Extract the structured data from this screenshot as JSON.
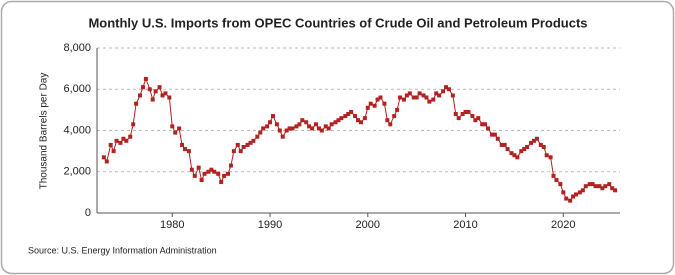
{
  "chart_data": {
    "type": "line",
    "title": "Monthly U.S. Imports from OPEC Countries of Crude Oil and Petroleum Products",
    "y_label": "Thousand Barrels per Day",
    "source": "Source: U.S. Energy Information Administration",
    "color": "#b22222",
    "grid": true,
    "xlim": [
      1972.3,
      2025.8
    ],
    "xticks": [
      1980,
      1990,
      2000,
      2010,
      2020
    ],
    "ylim": [
      0,
      8000
    ],
    "yticks": [
      0,
      {
        "value": 2000,
        "label": "2,000"
      },
      {
        "value": 4000,
        "label": "4,000"
      },
      {
        "value": 6000,
        "label": "6,000"
      },
      {
        "value": 8000,
        "label": "8,000"
      }
    ],
    "x": [
      1973.0,
      1973.3,
      1973.7,
      1974.0,
      1974.3,
      1974.7,
      1975.0,
      1975.3,
      1975.7,
      1976.0,
      1976.3,
      1976.7,
      1977.0,
      1977.3,
      1977.7,
      1978.0,
      1978.3,
      1978.7,
      1979.0,
      1979.3,
      1979.7,
      1980.0,
      1980.3,
      1980.7,
      1981.0,
      1981.3,
      1981.7,
      1982.0,
      1982.3,
      1982.7,
      1983.0,
      1983.3,
      1983.7,
      1984.0,
      1984.3,
      1984.7,
      1985.0,
      1985.3,
      1985.7,
      1986.0,
      1986.3,
      1986.7,
      1987.0,
      1987.3,
      1987.7,
      1988.0,
      1988.3,
      1988.7,
      1989.0,
      1989.3,
      1989.7,
      1990.0,
      1990.3,
      1990.7,
      1991.0,
      1991.3,
      1991.7,
      1992.0,
      1992.3,
      1992.7,
      1993.0,
      1993.3,
      1993.7,
      1994.0,
      1994.3,
      1994.7,
      1995.0,
      1995.3,
      1995.7,
      1996.0,
      1996.3,
      1996.7,
      1997.0,
      1997.3,
      1997.7,
      1998.0,
      1998.3,
      1998.7,
      1999.0,
      1999.3,
      1999.7,
      2000.0,
      2000.3,
      2000.7,
      2001.0,
      2001.3,
      2001.7,
      2002.0,
      2002.3,
      2002.7,
      2003.0,
      2003.3,
      2003.7,
      2004.0,
      2004.3,
      2004.7,
      2005.0,
      2005.3,
      2005.7,
      2006.0,
      2006.3,
      2006.7,
      2007.0,
      2007.3,
      2007.7,
      2008.0,
      2008.3,
      2008.7,
      2009.0,
      2009.3,
      2009.7,
      2010.0,
      2010.3,
      2010.7,
      2011.0,
      2011.3,
      2011.7,
      2012.0,
      2012.3,
      2012.7,
      2013.0,
      2013.3,
      2013.7,
      2014.0,
      2014.3,
      2014.7,
      2015.0,
      2015.3,
      2015.7,
      2016.0,
      2016.3,
      2016.7,
      2017.0,
      2017.3,
      2017.7,
      2018.0,
      2018.3,
      2018.7,
      2019.0,
      2019.3,
      2019.7,
      2020.0,
      2020.3,
      2020.7,
      2021.0,
      2021.3,
      2021.7,
      2022.0,
      2022.3,
      2022.7,
      2023.0,
      2023.3,
      2023.7,
      2024.0,
      2024.3,
      2024.7,
      2025.0,
      2025.3
    ],
    "values": [
      2700,
      2500,
      3300,
      3000,
      3500,
      3400,
      3600,
      3500,
      3700,
      4300,
      5300,
      5700,
      6100,
      6500,
      6000,
      5500,
      5900,
      6100,
      5700,
      5800,
      5600,
      4200,
      3900,
      4100,
      3300,
      3100,
      3000,
      2100,
      1800,
      2200,
      1600,
      1900,
      2000,
      2100,
      2000,
      1900,
      1500,
      1800,
      1900,
      2300,
      3000,
      3300,
      3000,
      3200,
      3300,
      3400,
      3500,
      3700,
      3900,
      4100,
      4200,
      4400,
      4700,
      4300,
      4000,
      3700,
      4000,
      4100,
      4100,
      4200,
      4300,
      4500,
      4400,
      4200,
      4100,
      4300,
      4100,
      4000,
      4200,
      4100,
      4300,
      4400,
      4500,
      4600,
      4700,
      4800,
      4900,
      4700,
      4500,
      4400,
      4600,
      5100,
      5300,
      5200,
      5500,
      5600,
      5300,
      4500,
      4300,
      4700,
      5000,
      5600,
      5500,
      5700,
      5800,
      5600,
      5600,
      5800,
      5700,
      5600,
      5400,
      5500,
      5800,
      5700,
      5900,
      6100,
      6000,
      5700,
      4800,
      4600,
      4800,
      4900,
      4900,
      4700,
      4500,
      4600,
      4300,
      4300,
      4100,
      3800,
      3800,
      3600,
      3300,
      3300,
      3100,
      2900,
      2800,
      2700,
      3000,
      3100,
      3200,
      3400,
      3500,
      3600,
      3300,
      3200,
      2800,
      2700,
      1800,
      1600,
      1400,
      1000,
      700,
      600,
      800,
      900,
      1000,
      1100,
      1300,
      1400,
      1400,
      1300,
      1300,
      1200,
      1300,
      1400,
      1200,
      1100
    ]
  }
}
